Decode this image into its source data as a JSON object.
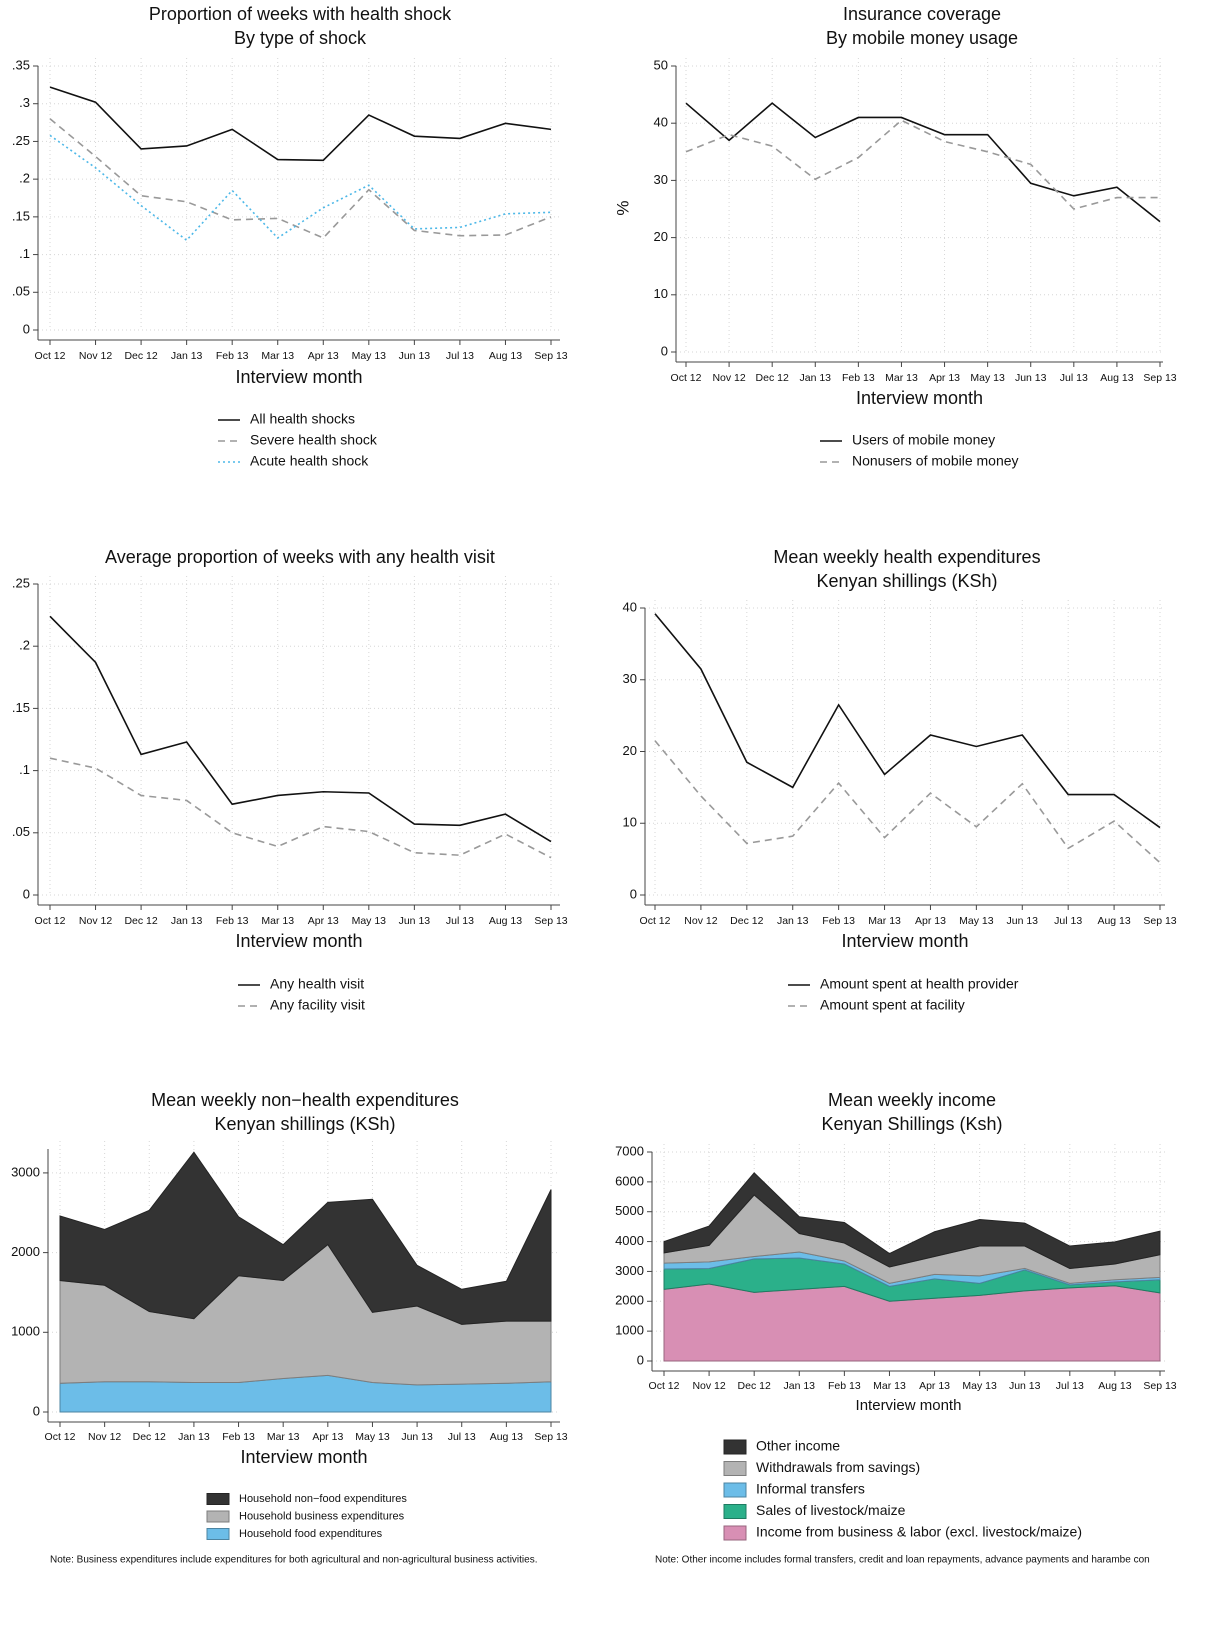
{
  "chart_data": [
    {
      "type": "line",
      "title": "Proportion of weeks with health shock",
      "subtitle": "By type of shock",
      "x_label": "Interview month",
      "categories": [
        "Oct 12",
        "Nov 12",
        "Dec 12",
        "Jan 13",
        "Feb 13",
        "Mar 13",
        "Apr 13",
        "May 13",
        "Jun 13",
        "Jul 13",
        "Aug 13",
        "Sep 13"
      ],
      "ylim": [
        0,
        0.35
      ],
      "yticks": [
        0,
        {
          "value": 0.05,
          "label": ".05"
        },
        {
          "value": 0.1,
          "label": ".1"
        },
        {
          "value": 0.15,
          "label": ".15"
        },
        {
          "value": 0.2,
          "label": ".2"
        },
        {
          "value": 0.25,
          "label": ".25"
        },
        {
          "value": 0.3,
          "label": ".3"
        },
        {
          "value": 0.35,
          "label": ".35"
        }
      ],
      "grid": true,
      "series": [
        {
          "name": "All health shocks",
          "color": "#111111",
          "style": "solid",
          "values": [
            0.322,
            0.302,
            0.24,
            0.244,
            0.266,
            0.226,
            0.225,
            0.285,
            0.257,
            0.254,
            0.274,
            0.266
          ]
        },
        {
          "name": "Severe health shock",
          "color": "#999999",
          "style": "dashed",
          "values": [
            0.28,
            0.23,
            0.178,
            0.17,
            0.146,
            0.148,
            0.122,
            0.186,
            0.132,
            0.125,
            0.126,
            0.15
          ]
        },
        {
          "name": "Acute health shock",
          "color": "#4db8e8",
          "style": "dotted",
          "values": [
            0.258,
            0.215,
            0.165,
            0.119,
            0.185,
            0.122,
            0.162,
            0.192,
            0.134,
            0.136,
            0.154,
            0.156
          ]
        }
      ]
    },
    {
      "type": "line",
      "title": "Insurance coverage",
      "subtitle": "By mobile money usage",
      "x_label": "Interview month",
      "y_label": "%",
      "categories": [
        "Oct 12",
        "Nov 12",
        "Dec 12",
        "Jan 13",
        "Feb 13",
        "Mar 13",
        "Apr 13",
        "May 13",
        "Jun 13",
        "Jul 13",
        "Aug 13",
        "Sep 13"
      ],
      "ylim": [
        0,
        50
      ],
      "yticks": [
        0,
        10,
        20,
        30,
        40,
        50
      ],
      "grid": true,
      "series": [
        {
          "name": "Users of mobile money",
          "color": "#111111",
          "style": "solid",
          "values": [
            43.5,
            37,
            43.5,
            37.5,
            41,
            41,
            38,
            38,
            29.5,
            27.3,
            28.8,
            22.8
          ]
        },
        {
          "name": "Nonusers of mobile money",
          "color": "#999999",
          "style": "dashed",
          "values": [
            35,
            38,
            36,
            30.2,
            34,
            40.5,
            36.8,
            35,
            32.8,
            25,
            27,
            27
          ]
        }
      ]
    },
    {
      "type": "line",
      "title": "Average proportion of weeks with any health visit",
      "x_label": "Interview month",
      "categories": [
        "Oct 12",
        "Nov 12",
        "Dec 12",
        "Jan 13",
        "Feb 13",
        "Mar 13",
        "Apr 13",
        "May 13",
        "Jun 13",
        "Jul 13",
        "Aug 13",
        "Sep 13"
      ],
      "ylim": [
        0,
        0.25
      ],
      "yticks": [
        0,
        {
          "value": 0.05,
          "label": ".05"
        },
        {
          "value": 0.1,
          "label": ".1"
        },
        {
          "value": 0.15,
          "label": ".15"
        },
        {
          "value": 0.2,
          "label": ".2"
        },
        {
          "value": 0.25,
          "label": ".25"
        }
      ],
      "grid": true,
      "series": [
        {
          "name": "Any health visit",
          "color": "#111111",
          "style": "solid",
          "values": [
            0.224,
            0.187,
            0.113,
            0.123,
            0.073,
            0.08,
            0.083,
            0.082,
            0.057,
            0.056,
            0.065,
            0.043
          ]
        },
        {
          "name": "Any facility visit",
          "color": "#999999",
          "style": "dashed",
          "values": [
            0.11,
            0.102,
            0.08,
            0.076,
            0.05,
            0.039,
            0.055,
            0.051,
            0.034,
            0.032,
            0.049,
            0.03
          ]
        }
      ]
    },
    {
      "type": "line",
      "title": "Mean weekly health expenditures",
      "subtitle": "Kenyan shillings (KSh)",
      "x_label": "Interview month",
      "categories": [
        "Oct 12",
        "Nov 12",
        "Dec 12",
        "Jan 13",
        "Feb 13",
        "Mar 13",
        "Apr 13",
        "May 13",
        "Jun 13",
        "Jul 13",
        "Aug 13",
        "Sep 13"
      ],
      "ylim": [
        0,
        40
      ],
      "yticks": [
        0,
        10,
        20,
        30,
        40
      ],
      "grid": true,
      "series": [
        {
          "name": "Amount spent at health provider",
          "color": "#111111",
          "style": "solid",
          "values": [
            39.2,
            31.5,
            18.5,
            15,
            26.5,
            16.8,
            22.3,
            20.7,
            22.3,
            14,
            14,
            9.4
          ]
        },
        {
          "name": "Amount spent at facility",
          "color": "#999999",
          "style": "dashed",
          "values": [
            21.5,
            13.8,
            7.2,
            8.2,
            15.6,
            8,
            14.2,
            9.5,
            15.5,
            6.5,
            10.3,
            4.5
          ]
        }
      ]
    },
    {
      "type": "area",
      "stacked": true,
      "title": "Mean weekly non−health expenditures",
      "subtitle": "Kenyan shillings (KSh)",
      "x_label": "Interview month",
      "categories": [
        "Oct 12",
        "Nov 12",
        "Dec 12",
        "Jan 13",
        "Feb 13",
        "Mar 13",
        "Apr 13",
        "May 13",
        "Jun 13",
        "Jul 13",
        "Aug 13",
        "Sep 13"
      ],
      "ylim": [
        0,
        3300
      ],
      "yticks": [
        0,
        1000,
        2000,
        3000
      ],
      "grid": true,
      "note": "Note: Business expenditures include expenditures for both agricultural and non-agricultural business activities.",
      "series": [
        {
          "name": "Household non−food expenditures",
          "color": "#333333",
          "values": [
            810,
            700,
            1270,
            2090,
            740,
            450,
            530,
            1420,
            510,
            440,
            500,
            1650
          ]
        },
        {
          "name": "Household business expenditures",
          "color": "#b3b3b3",
          "values": [
            1290,
            1210,
            880,
            800,
            1340,
            1230,
            1640,
            880,
            990,
            750,
            780,
            760
          ]
        },
        {
          "name": "Household food expenditures",
          "color": "#6cbde8",
          "values": [
            360,
            380,
            380,
            370,
            370,
            420,
            460,
            370,
            340,
            350,
            360,
            380
          ]
        }
      ]
    },
    {
      "type": "area",
      "stacked": true,
      "title": "Mean weekly income",
      "subtitle": "Kenyan Shillings (Ksh)",
      "x_label": "Interview month",
      "categories": [
        "Oct 12",
        "Nov 12",
        "Dec 12",
        "Jan 13",
        "Feb 13",
        "Mar 13",
        "Apr 13",
        "May 13",
        "Jun 13",
        "Jul 13",
        "Aug 13",
        "Sep 13"
      ],
      "ylim": [
        0,
        7000
      ],
      "yticks": [
        0,
        1000,
        2000,
        3000,
        4000,
        5000,
        6000,
        7000
      ],
      "grid": true,
      "note": "Note: Other income includes formal transfers, credit and loan repayments, advance payments and harambe con",
      "series": [
        {
          "name": "Other income",
          "color": "#333333",
          "values": [
            380,
            650,
            740,
            560,
            690,
            450,
            830,
            890,
            770,
            750,
            740,
            790
          ]
        },
        {
          "name": "Withdrawals from savings)",
          "color": "#b3b3b3",
          "values": [
            340,
            550,
            2060,
            620,
            600,
            550,
            600,
            1000,
            750,
            500,
            530,
            760
          ]
        },
        {
          "name": "Informal transfers",
          "color": "#6cbde8",
          "values": [
            200,
            220,
            80,
            200,
            100,
            100,
            150,
            250,
            50,
            50,
            70,
            80
          ]
        },
        {
          "name": "Sales of livestock/maize",
          "color": "#2bb08a",
          "values": [
            680,
            520,
            1120,
            1050,
            750,
            500,
            650,
            400,
            700,
            100,
            130,
            440
          ]
        },
        {
          "name": "Income from business & labor (excl. livestock/maize)",
          "color": "#d88fb4",
          "values": [
            2400,
            2580,
            2300,
            2400,
            2500,
            2000,
            2100,
            2200,
            2350,
            2450,
            2520,
            2280
          ]
        }
      ]
    }
  ]
}
